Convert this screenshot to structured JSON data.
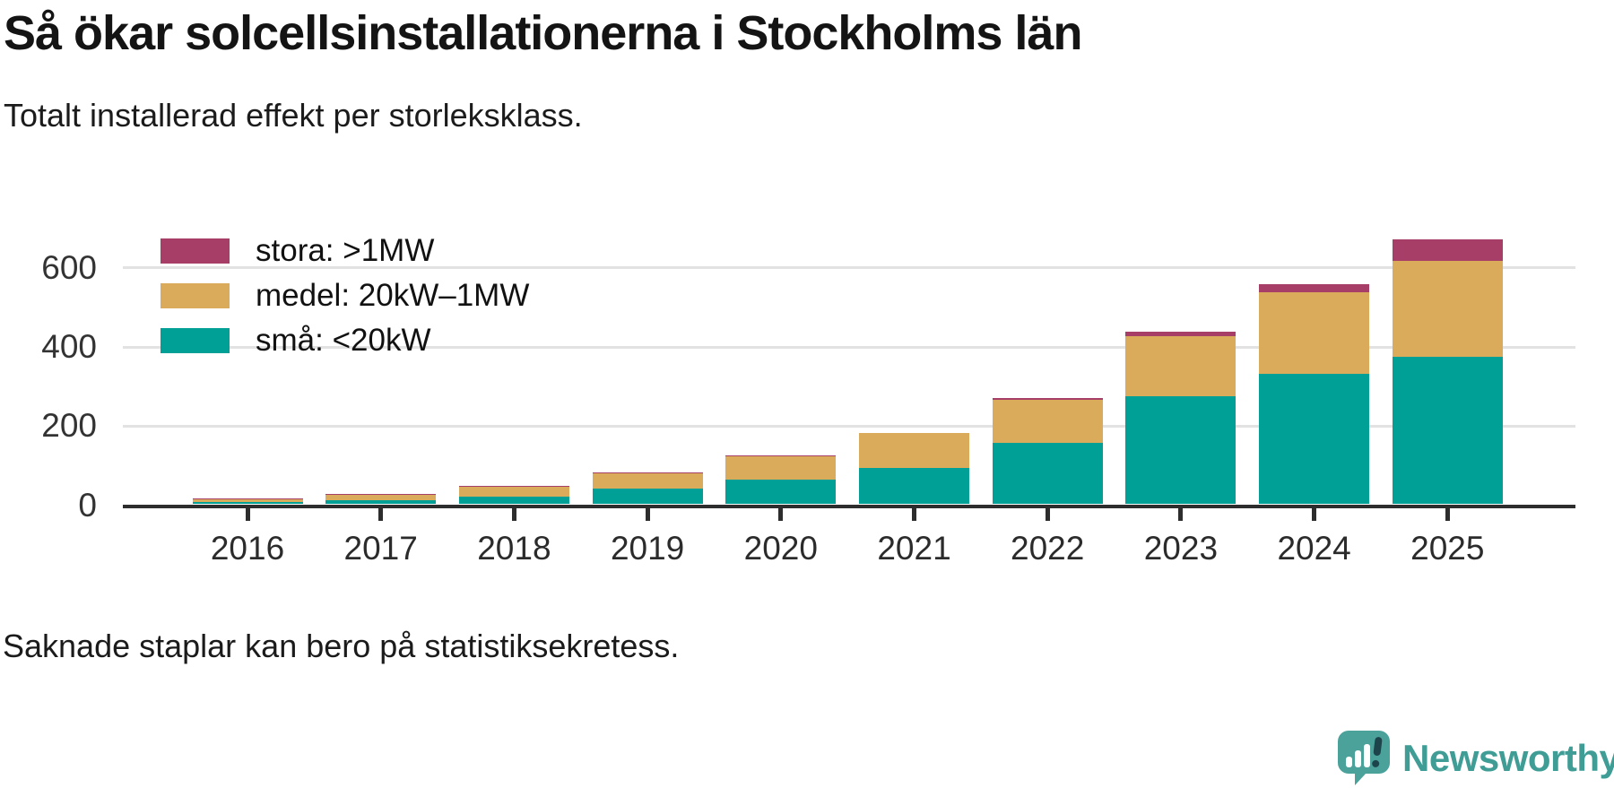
{
  "chart_data": {
    "type": "bar",
    "stacked": true,
    "title": "Så ökar solcellsinstallationerna i Stockholms län",
    "subtitle": "Totalt installerad effekt per storleksklass.",
    "note": "Saknade staplar kan bero på statistiksekretess.",
    "categories": [
      "2016",
      "2017",
      "2018",
      "2019",
      "2020",
      "2021",
      "2022",
      "2023",
      "2024",
      "2025"
    ],
    "series": [
      {
        "key": "stora",
        "name": "stora: >1MW",
        "color": "#A73E68",
        "values": [
          1,
          2,
          2,
          2,
          2,
          1,
          4,
          11,
          20,
          54
        ]
      },
      {
        "key": "medel",
        "name": "medel: 20kW–1MW",
        "color": "#D9AB5A",
        "values": [
          7,
          12,
          26,
          40,
          60,
          88,
          110,
          152,
          205,
          244
        ]
      },
      {
        "key": "sma",
        "name": "små: <20kW",
        "color": "#00A096",
        "values": [
          6,
          11,
          19,
          39,
          62,
          92,
          155,
          274,
          331,
          372
        ]
      }
    ],
    "stack_order_bottom_to_top": [
      "sma",
      "medel",
      "stora"
    ],
    "xlabel": "",
    "ylabel": "",
    "yticks": [
      0,
      200,
      400,
      600
    ],
    "ylim": [
      0,
      690
    ],
    "grid": "horizontal",
    "legend_position": "top-left-inside"
  },
  "colors": {
    "background": "#ffffff",
    "axis": "#2d2d2d",
    "gridline": "#e2e2e2",
    "text": "#141414"
  },
  "branding": {
    "name": "Newsworthy",
    "color": "#3F9D96",
    "icon": "speech-bubble-bar-chart-icon"
  }
}
